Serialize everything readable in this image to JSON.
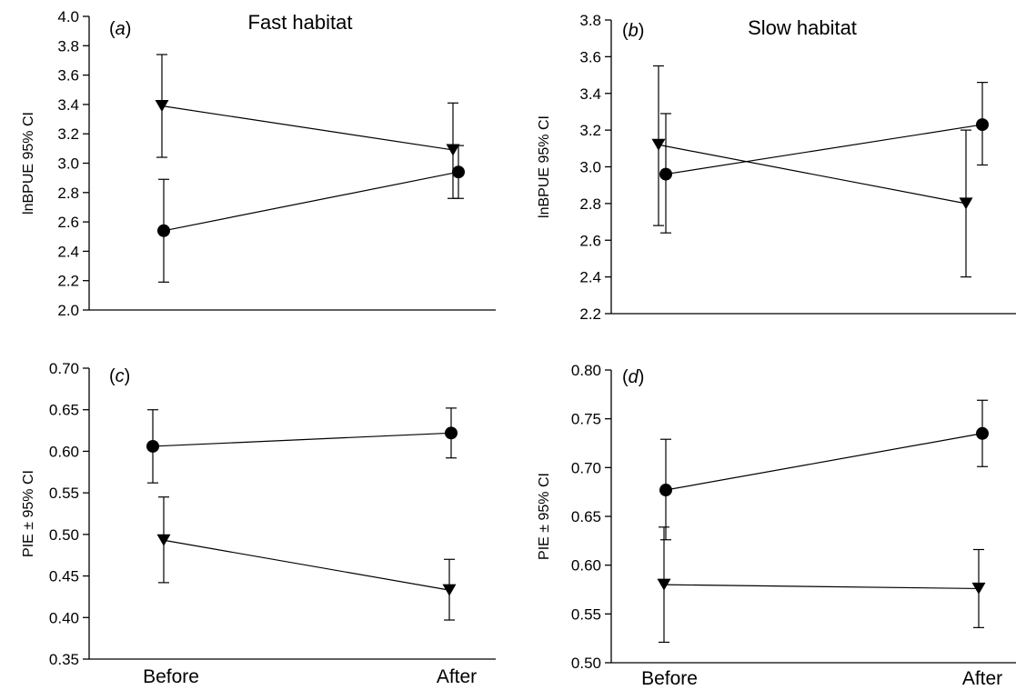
{
  "chart_data": [
    {
      "panel": "a",
      "type": "line",
      "label": "(a)",
      "title": "Fast habitat",
      "ylabel": "lnBPUE 95% CI",
      "xlabel": "",
      "categories": [
        "Before",
        "After"
      ],
      "show_x_tick_labels": false,
      "ylim": [
        2.0,
        4.0
      ],
      "yticks": [
        "2.0",
        "2.2",
        "2.4",
        "2.6",
        "2.8",
        "3.0",
        "3.2",
        "3.4",
        "3.6",
        "3.8",
        "4.0"
      ],
      "grid": false,
      "series": [
        {
          "marker": "circle",
          "values": [
            2.54,
            2.94
          ],
          "ci_low": [
            2.19,
            2.76
          ],
          "ci_high": [
            2.89,
            3.12
          ]
        },
        {
          "marker": "triangle-down",
          "values": [
            3.39,
            3.09
          ],
          "ci_low": [
            3.04,
            2.76
          ],
          "ci_high": [
            3.74,
            3.41
          ]
        }
      ]
    },
    {
      "panel": "b",
      "type": "line",
      "label": "(b)",
      "title": "Slow habitat",
      "ylabel": "lnBPUE 95% CI",
      "xlabel": "",
      "categories": [
        "Before",
        "After"
      ],
      "show_x_tick_labels": false,
      "ylim": [
        2.2,
        3.8
      ],
      "yticks": [
        "2.2",
        "2.4",
        "2.6",
        "2.8",
        "3.0",
        "3.2",
        "3.4",
        "3.6",
        "3.8"
      ],
      "grid": false,
      "series": [
        {
          "marker": "circle",
          "values": [
            2.96,
            3.23
          ],
          "ci_low": [
            2.64,
            3.01
          ],
          "ci_high": [
            3.29,
            3.46
          ]
        },
        {
          "marker": "triangle-down",
          "values": [
            3.12,
            2.8
          ],
          "ci_low": [
            2.68,
            2.4
          ],
          "ci_high": [
            3.55,
            3.2
          ]
        }
      ]
    },
    {
      "panel": "c",
      "type": "line",
      "label": "(c)",
      "title": "",
      "ylabel": "PIE ± 95% CI",
      "xlabel": "",
      "categories": [
        "Before",
        "After"
      ],
      "show_x_tick_labels": true,
      "ylim": [
        0.35,
        0.7
      ],
      "yticks": [
        "0.35",
        "0.40",
        "0.45",
        "0.50",
        "0.55",
        "0.60",
        "0.65",
        "0.70"
      ],
      "grid": false,
      "series": [
        {
          "marker": "circle",
          "values": [
            0.606,
            0.622
          ],
          "ci_low": [
            0.562,
            0.592
          ],
          "ci_high": [
            0.65,
            0.652
          ]
        },
        {
          "marker": "triangle-down",
          "values": [
            0.493,
            0.433
          ],
          "ci_low": [
            0.442,
            0.397
          ],
          "ci_high": [
            0.545,
            0.47
          ]
        }
      ]
    },
    {
      "panel": "d",
      "type": "line",
      "label": "(d)",
      "title": "",
      "ylabel": "PIE ± 95% CI",
      "xlabel": "",
      "categories": [
        "Before",
        "After"
      ],
      "show_x_tick_labels": true,
      "ylim": [
        0.5,
        0.8
      ],
      "yticks": [
        "0.50",
        "0.55",
        "0.60",
        "0.65",
        "0.70",
        "0.75",
        "0.80"
      ],
      "grid": false,
      "series": [
        {
          "marker": "circle",
          "values": [
            0.677,
            0.735
          ],
          "ci_low": [
            0.626,
            0.701
          ],
          "ci_high": [
            0.729,
            0.769
          ]
        },
        {
          "marker": "triangle-down",
          "values": [
            0.58,
            0.576
          ],
          "ci_low": [
            0.521,
            0.536
          ],
          "ci_high": [
            0.639,
            0.616
          ]
        }
      ]
    }
  ]
}
